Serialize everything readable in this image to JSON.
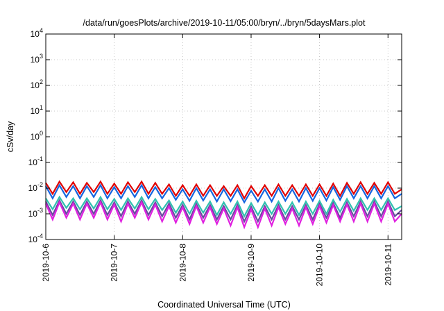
{
  "chart_data": {
    "type": "line",
    "title": "/data/run/goesPlots/archive/2019-10-11/05:00/bryn/../bryn/5daysMars.plot",
    "xlabel": "Coordinated Universal Time (UTC)",
    "ylabel": "cSv/day",
    "x_tick_labels": [
      "2019-10-6",
      "2019-10-7",
      "2019-10-8",
      "2019-10-9",
      "2019-10-10",
      "2019-10-11"
    ],
    "x_ticks_days": [
      0,
      1,
      2,
      3,
      4,
      5
    ],
    "xlim_days": [
      0,
      5.2
    ],
    "x_origin": "2019-10-06",
    "y_scale": "log",
    "ylim": [
      0.0001,
      10000
    ],
    "y_ticks": [
      {
        "base": "10",
        "exp": "-4",
        "value": 0.0001
      },
      {
        "base": "10",
        "exp": "-3",
        "value": 0.001
      },
      {
        "base": "10",
        "exp": "-2",
        "value": 0.01
      },
      {
        "base": "10",
        "exp": "-1",
        "value": 0.1
      },
      {
        "base": "10",
        "exp": "0",
        "value": 1
      },
      {
        "base": "10",
        "exp": "1",
        "value": 10
      },
      {
        "base": "10",
        "exp": "2",
        "value": 100
      },
      {
        "base": "10",
        "exp": "3",
        "value": 1000
      },
      {
        "base": "10",
        "exp": "4",
        "value": 10000
      }
    ],
    "grid": true,
    "legend": "none",
    "series": [
      {
        "color": "#e00000",
        "x_days": [
          0.0,
          0.1,
          0.2,
          0.3,
          0.4,
          0.5,
          0.6,
          0.7,
          0.8,
          0.9,
          1.0,
          1.1,
          1.2,
          1.3,
          1.4,
          1.5,
          1.6,
          1.7,
          1.8,
          1.9,
          2.0,
          2.1,
          2.2,
          2.3,
          2.4,
          2.5,
          2.6,
          2.7,
          2.8,
          2.9,
          3.0,
          3.1,
          3.2,
          3.3,
          3.4,
          3.5,
          3.6,
          3.7,
          3.8,
          3.9,
          4.0,
          4.1,
          4.2,
          4.3,
          4.4,
          4.5,
          4.6,
          4.7,
          4.8,
          4.9,
          5.0,
          5.1,
          5.2
        ],
        "values": [
          0.016,
          0.006,
          0.018,
          0.007,
          0.017,
          0.006,
          0.016,
          0.007,
          0.018,
          0.006,
          0.015,
          0.006,
          0.017,
          0.007,
          0.018,
          0.006,
          0.016,
          0.006,
          0.014,
          0.005,
          0.013,
          0.005,
          0.014,
          0.005,
          0.013,
          0.005,
          0.012,
          0.005,
          0.013,
          0.004,
          0.012,
          0.005,
          0.013,
          0.005,
          0.014,
          0.005,
          0.013,
          0.005,
          0.014,
          0.005,
          0.014,
          0.005,
          0.015,
          0.005,
          0.016,
          0.006,
          0.017,
          0.006,
          0.016,
          0.006,
          0.017,
          0.006,
          0.009
        ]
      },
      {
        "color": "#1565e0",
        "x_days": [
          0.0,
          0.1,
          0.2,
          0.3,
          0.4,
          0.5,
          0.6,
          0.7,
          0.8,
          0.9,
          1.0,
          1.1,
          1.2,
          1.3,
          1.4,
          1.5,
          1.6,
          1.7,
          1.8,
          1.9,
          2.0,
          2.1,
          2.2,
          2.3,
          2.4,
          2.5,
          2.6,
          2.7,
          2.8,
          2.9,
          3.0,
          3.1,
          3.2,
          3.3,
          3.4,
          3.5,
          3.6,
          3.7,
          3.8,
          3.9,
          4.0,
          4.1,
          4.2,
          4.3,
          4.4,
          4.5,
          4.6,
          4.7,
          4.8,
          4.9,
          5.0,
          5.1,
          5.2
        ],
        "values": [
          0.012,
          0.004,
          0.013,
          0.0045,
          0.012,
          0.004,
          0.012,
          0.0045,
          0.013,
          0.004,
          0.011,
          0.004,
          0.012,
          0.0045,
          0.013,
          0.004,
          0.011,
          0.004,
          0.01,
          0.0035,
          0.009,
          0.0032,
          0.01,
          0.0033,
          0.009,
          0.003,
          0.009,
          0.0031,
          0.009,
          0.0028,
          0.008,
          0.003,
          0.009,
          0.003,
          0.01,
          0.0032,
          0.009,
          0.003,
          0.01,
          0.0032,
          0.01,
          0.0033,
          0.011,
          0.0035,
          0.012,
          0.004,
          0.012,
          0.004,
          0.012,
          0.004,
          0.012,
          0.004,
          0.006
        ]
      },
      {
        "color": "#30c0b0",
        "x_days": [
          0.0,
          0.1,
          0.2,
          0.3,
          0.4,
          0.5,
          0.6,
          0.7,
          0.8,
          0.9,
          1.0,
          1.1,
          1.2,
          1.3,
          1.4,
          1.5,
          1.6,
          1.7,
          1.8,
          1.9,
          2.0,
          2.1,
          2.2,
          2.3,
          2.4,
          2.5,
          2.6,
          2.7,
          2.8,
          2.9,
          3.0,
          3.1,
          3.2,
          3.3,
          3.4,
          3.5,
          3.6,
          3.7,
          3.8,
          3.9,
          4.0,
          4.1,
          4.2,
          4.3,
          4.4,
          4.5,
          4.6,
          4.7,
          4.8,
          4.9,
          5.0,
          5.1,
          5.2
        ],
        "values": [
          0.004,
          0.0015,
          0.0045,
          0.0017,
          0.004,
          0.0015,
          0.004,
          0.0016,
          0.0045,
          0.0015,
          0.0038,
          0.0014,
          0.004,
          0.0016,
          0.0045,
          0.0015,
          0.0038,
          0.0014,
          0.0033,
          0.0011,
          0.003,
          0.001,
          0.0032,
          0.0011,
          0.003,
          0.0009,
          0.0028,
          0.001,
          0.003,
          0.0008,
          0.0026,
          0.0009,
          0.0028,
          0.001,
          0.003,
          0.001,
          0.0028,
          0.0009,
          0.003,
          0.001,
          0.0032,
          0.001,
          0.0035,
          0.0012,
          0.0038,
          0.0013,
          0.004,
          0.0014,
          0.004,
          0.0014,
          0.004,
          0.0014,
          0.002
        ]
      },
      {
        "color": "#6a4aa0",
        "x_days": [
          0.0,
          0.1,
          0.2,
          0.3,
          0.4,
          0.5,
          0.6,
          0.7,
          0.8,
          0.9,
          1.0,
          1.1,
          1.2,
          1.3,
          1.4,
          1.5,
          1.6,
          1.7,
          1.8,
          1.9,
          2.0,
          2.1,
          2.2,
          2.3,
          2.4,
          2.5,
          2.6,
          2.7,
          2.8,
          2.9,
          3.0,
          3.1,
          3.2,
          3.3,
          3.4,
          3.5,
          3.6,
          3.7,
          3.8,
          3.9,
          4.0,
          4.1,
          4.2,
          4.3,
          4.4,
          4.5,
          4.6,
          4.7,
          4.8,
          4.9,
          5.0,
          5.1,
          5.2
        ],
        "values": [
          0.003,
          0.0009,
          0.0033,
          0.001,
          0.003,
          0.0009,
          0.003,
          0.001,
          0.0033,
          0.0009,
          0.0028,
          0.0008,
          0.003,
          0.001,
          0.0033,
          0.0009,
          0.0028,
          0.0008,
          0.0025,
          0.0007,
          0.0022,
          0.0006,
          0.0024,
          0.0007,
          0.0022,
          0.0006,
          0.002,
          0.0006,
          0.0022,
          0.0005,
          0.0019,
          0.0005,
          0.002,
          0.0006,
          0.0022,
          0.0006,
          0.002,
          0.0006,
          0.0022,
          0.0006,
          0.0024,
          0.0007,
          0.0026,
          0.0007,
          0.0028,
          0.0008,
          0.003,
          0.0008,
          0.003,
          0.0008,
          0.003,
          0.0008,
          0.0014
        ]
      },
      {
        "color": "#e020e0",
        "x_days": [
          0.0,
          0.1,
          0.2,
          0.3,
          0.4,
          0.5,
          0.6,
          0.7,
          0.8,
          0.9,
          1.0,
          1.1,
          1.2,
          1.3,
          1.4,
          1.5,
          1.6,
          1.7,
          1.8,
          1.9,
          2.0,
          2.1,
          2.2,
          2.3,
          2.4,
          2.5,
          2.6,
          2.7,
          2.8,
          2.9,
          3.0,
          3.1,
          3.2,
          3.3,
          3.4,
          3.5,
          3.6,
          3.7,
          3.8,
          3.9,
          4.0,
          4.1,
          4.2,
          4.3,
          4.4,
          4.5,
          4.6,
          4.7,
          4.8,
          4.9,
          5.0,
          5.1,
          5.2
        ],
        "values": [
          0.0025,
          0.0006,
          0.0028,
          0.0007,
          0.0025,
          0.0006,
          0.0025,
          0.0007,
          0.0028,
          0.0006,
          0.0023,
          0.0005,
          0.0025,
          0.0007,
          0.0028,
          0.0006,
          0.0023,
          0.0005,
          0.002,
          0.00045,
          0.0018,
          0.0004,
          0.002,
          0.00045,
          0.0018,
          0.0004,
          0.0016,
          0.00035,
          0.0018,
          0.0003,
          0.0015,
          0.0003,
          0.0016,
          0.00035,
          0.0018,
          0.0004,
          0.0016,
          0.00035,
          0.0018,
          0.0004,
          0.002,
          0.00045,
          0.0022,
          0.0005,
          0.0023,
          0.0005,
          0.0025,
          0.0005,
          0.0025,
          0.0005,
          0.0025,
          0.0005,
          0.001
        ]
      }
    ]
  }
}
